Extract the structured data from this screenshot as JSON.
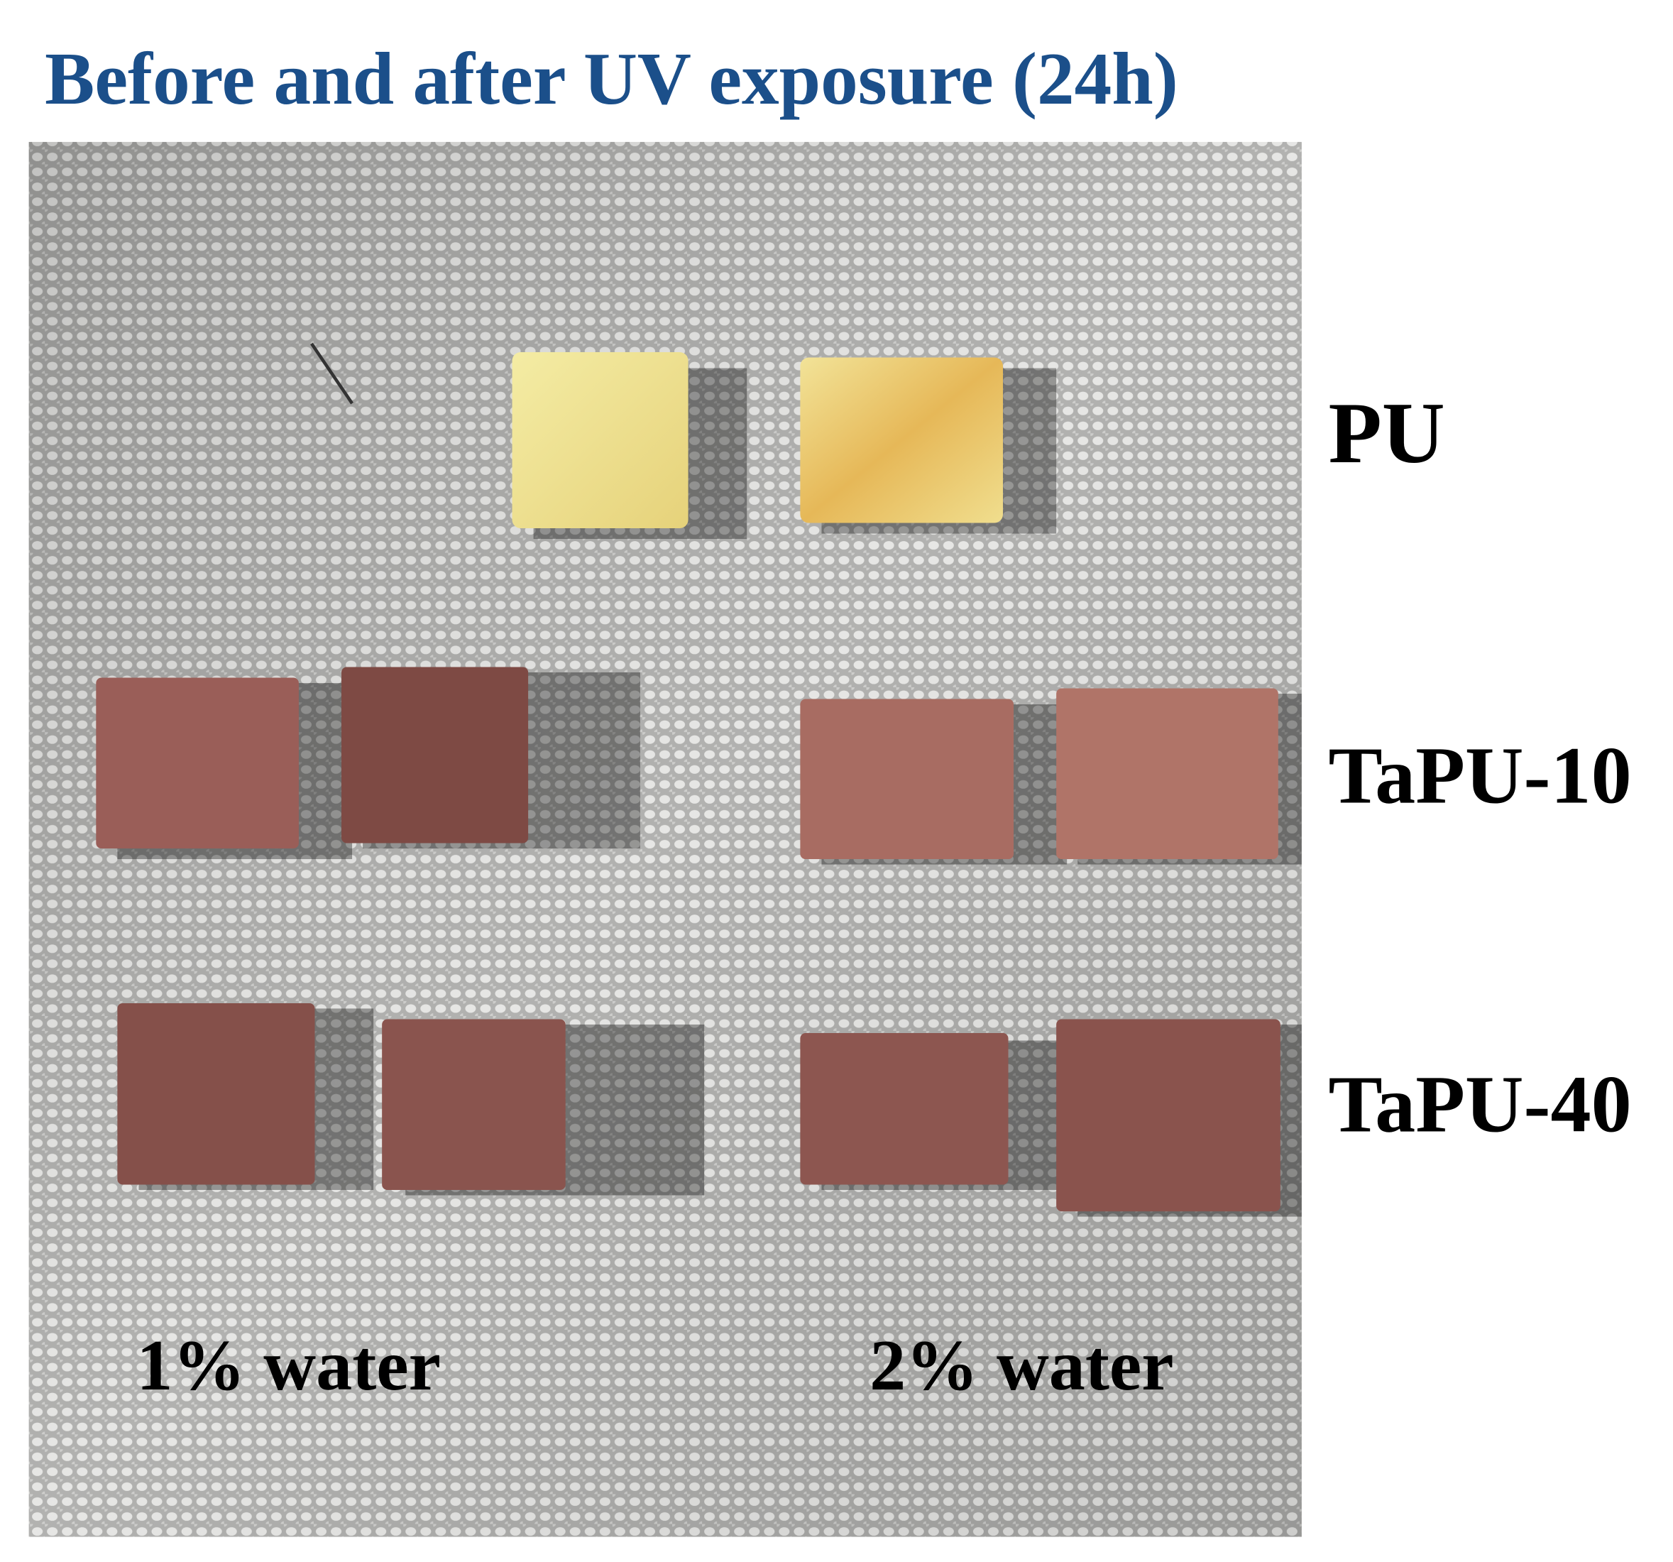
{
  "title": "Before and after UV exposure (24h)",
  "row_labels": [
    "PU",
    "TaPU-10",
    "TaPU-40"
  ],
  "column_labels": [
    "1% water",
    "2% water"
  ]
}
